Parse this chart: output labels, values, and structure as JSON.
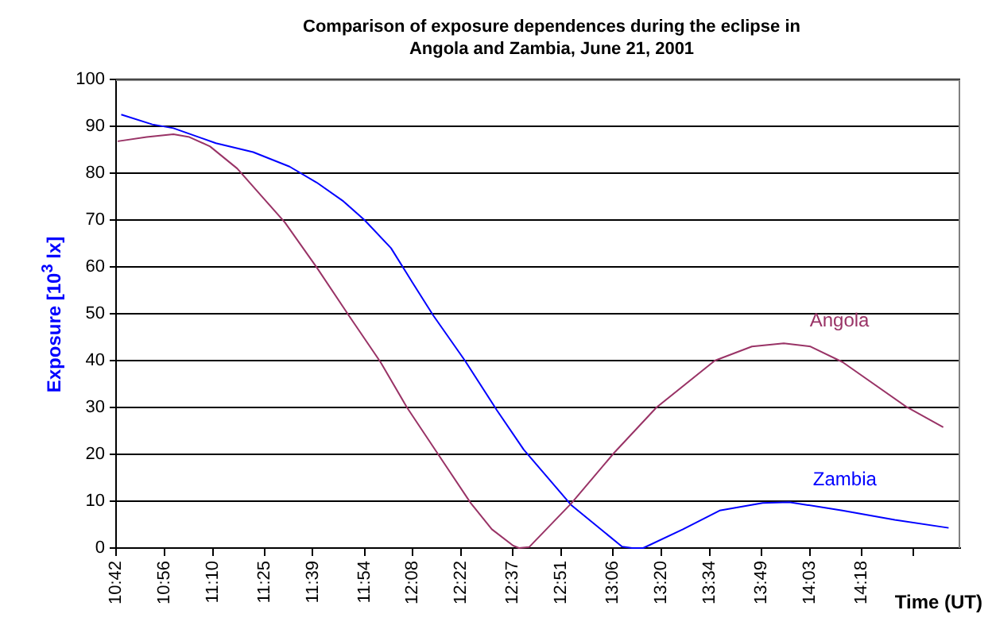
{
  "chart_data": {
    "type": "line",
    "title": "Comparison of exposure dependences during the eclipse in Angola and Zambia, June 21, 2001",
    "xlabel": "Time (UT)",
    "ylabel": "Exposure [10$^{3}$ lx]",
    "xlim": [
      10.7,
      14.777
    ],
    "xticks": [
      {
        "value": 10.7,
        "label": "10:42"
      },
      {
        "value": 10.9333,
        "label": "10:56"
      },
      {
        "value": 11.1667,
        "label": "11:10"
      },
      {
        "value": 11.4167,
        "label": "11:25"
      },
      {
        "value": 11.65,
        "label": "11:39"
      },
      {
        "value": 11.9,
        "label": "11:54"
      },
      {
        "value": 12.1333,
        "label": "12:08"
      },
      {
        "value": 12.3667,
        "label": "12:22"
      },
      {
        "value": 12.6167,
        "label": "12:37"
      },
      {
        "value": 12.85,
        "label": "12:51"
      },
      {
        "value": 13.1,
        "label": "13:06"
      },
      {
        "value": 13.3333,
        "label": "13:20"
      },
      {
        "value": 13.5667,
        "label": "13:34"
      },
      {
        "value": 13.8167,
        "label": "13:49"
      },
      {
        "value": 14.05,
        "label": "14:03"
      },
      {
        "value": 14.3,
        "label": "14:18"
      },
      {
        "value": 14.55,
        "label": null
      }
    ],
    "ylim": [
      0,
      100
    ],
    "yticks": [
      0,
      10,
      20,
      30,
      40,
      50,
      60,
      70,
      80,
      90,
      100
    ],
    "grid": "y",
    "legend": false,
    "marker": "none",
    "line_style": "solid",
    "series": [
      {
        "name": "Angola",
        "color": "#993366",
        "x": [
          10.708,
          10.848,
          10.977,
          11.054,
          11.154,
          11.285,
          11.413,
          11.515,
          11.669,
          11.823,
          11.977,
          12.105,
          12.259,
          12.413,
          12.515,
          12.618,
          12.646,
          12.695,
          12.9,
          13.105,
          13.31,
          13.592,
          13.771,
          13.925,
          14.054,
          14.208,
          14.515,
          14.695
        ],
        "values": [
          86.8,
          87.7,
          88.3,
          87.7,
          85.7,
          81,
          74.6,
          69.5,
          59.9,
          49.7,
          39.7,
          30,
          19.8,
          9.6,
          4,
          0.5,
          0,
          0.2,
          9.6,
          20.3,
          30,
          40,
          43,
          43.7,
          43,
          39.7,
          30.2,
          25.8
        ]
      },
      {
        "name": "Zambia",
        "color": "#0000ff",
        "x": [
          10.725,
          10.875,
          10.977,
          11.182,
          11.362,
          11.538,
          11.669,
          11.798,
          11.9,
          12.028,
          12.131,
          12.231,
          12.385,
          12.538,
          12.669,
          12.9,
          13.144,
          13.192,
          13.246,
          13.438,
          13.615,
          13.823,
          13.951,
          14.208,
          14.461,
          14.721
        ],
        "values": [
          92.5,
          90.4,
          89.6,
          86.4,
          84.5,
          81.4,
          78,
          74,
          70,
          64,
          56.7,
          49.7,
          40,
          29.5,
          21,
          9.1,
          0.3,
          0,
          0,
          4,
          8,
          9.6,
          9.8,
          8,
          6,
          4.3
        ]
      }
    ]
  }
}
